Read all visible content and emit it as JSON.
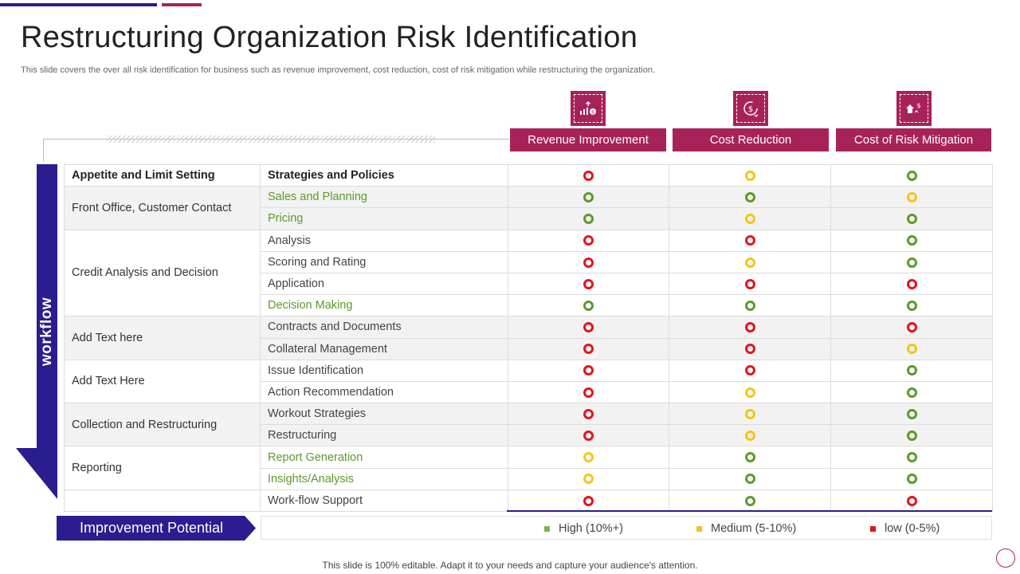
{
  "header": {
    "title": "Restructuring Organization Risk Identification",
    "subtitle": "This slide covers the over all risk identification for business such as revenue improvement, cost reduction, cost of risk mitigation while restructuring the organization."
  },
  "columns": [
    {
      "label": "Revenue Improvement",
      "icon": "chart-dollar-icon"
    },
    {
      "label": "Cost Reduction",
      "icon": "dollar-cycle-icon"
    },
    {
      "label": "Cost of Risk Mitigation",
      "icon": "house-dollar-icon"
    }
  ],
  "workflow_label": "workflow",
  "table": {
    "header": {
      "group": "Appetite and Limit Setting",
      "strategy": "Strategies and Policies",
      "ratings": [
        "red",
        "yellow",
        "green"
      ]
    },
    "groups": [
      {
        "label": "Front Office, Customer Contact",
        "rows": [
          {
            "label": "Sales and Planning",
            "highlight": true,
            "ratings": [
              "green",
              "green",
              "yellow"
            ]
          },
          {
            "label": "Pricing",
            "highlight": true,
            "ratings": [
              "green",
              "yellow",
              "green"
            ]
          }
        ]
      },
      {
        "label": "Credit Analysis and Decision",
        "rows": [
          {
            "label": "Analysis",
            "highlight": false,
            "ratings": [
              "red",
              "red",
              "green"
            ]
          },
          {
            "label": "Scoring and Rating",
            "highlight": false,
            "ratings": [
              "red",
              "yellow",
              "green"
            ]
          },
          {
            "label": "Application",
            "highlight": false,
            "ratings": [
              "red",
              "red",
              "red"
            ]
          },
          {
            "label": "Decision Making",
            "highlight": true,
            "ratings": [
              "green",
              "green",
              "green"
            ]
          }
        ]
      },
      {
        "label": "Add Text here",
        "rows": [
          {
            "label": "Contracts and Documents",
            "highlight": false,
            "ratings": [
              "red",
              "red",
              "red"
            ]
          },
          {
            "label": "Collateral Management",
            "highlight": false,
            "ratings": [
              "red",
              "red",
              "yellow"
            ]
          }
        ]
      },
      {
        "label": "Add Text Here",
        "rows": [
          {
            "label": "Issue Identification",
            "highlight": false,
            "ratings": [
              "red",
              "red",
              "green"
            ]
          },
          {
            "label": "Action Recommendation",
            "highlight": false,
            "ratings": [
              "red",
              "yellow",
              "green"
            ]
          }
        ]
      },
      {
        "label": "Collection and Restructuring",
        "rows": [
          {
            "label": "Workout Strategies",
            "highlight": false,
            "ratings": [
              "red",
              "yellow",
              "green"
            ]
          },
          {
            "label": "Restructuring",
            "highlight": false,
            "ratings": [
              "red",
              "yellow",
              "green"
            ]
          }
        ]
      },
      {
        "label": "Reporting",
        "rows": [
          {
            "label": "Report Generation",
            "highlight": true,
            "ratings": [
              "yellow",
              "green",
              "green"
            ]
          },
          {
            "label": "Insights/Analysis",
            "highlight": true,
            "ratings": [
              "yellow",
              "green",
              "green"
            ]
          }
        ]
      },
      {
        "label": "",
        "rows": [
          {
            "label": "Work-flow Support",
            "highlight": false,
            "ratings": [
              "red",
              "green",
              "red"
            ]
          }
        ]
      }
    ]
  },
  "improvement": {
    "label": "Improvement Potential",
    "legend": [
      {
        "label": "High (10%+)",
        "color": "#7ab648"
      },
      {
        "label": "Medium (5-10%)",
        "color": "#f5c518"
      },
      {
        "label": "low (0-5%)",
        "color": "#e3141c"
      }
    ]
  },
  "footer": "This slide is 100% editable. Adapt it to your needs and capture your audience's attention.",
  "colors": {
    "primary": "#2a1d8f",
    "accent": "#a8225a",
    "high": "#5c9a2a",
    "medium": "#f5c518",
    "low": "#e3141c"
  }
}
